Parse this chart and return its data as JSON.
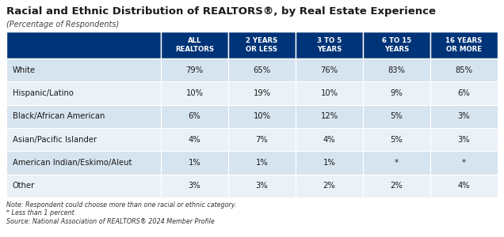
{
  "title": "Racial and Ethnic Distribution of REALTORS®, by Real Estate Experience",
  "subtitle": "(Percentage of Respondents)",
  "columns": [
    "ALL\nREALTORS",
    "2 YEARS\nOR LESS",
    "3 TO 5\nYEARS",
    "6 TO 15\nYEARS",
    "16 YEARS\nOR MORE"
  ],
  "rows": [
    {
      "label": "White",
      "values": [
        "79%",
        "65%",
        "76%",
        "83%",
        "85%"
      ]
    },
    {
      "label": "Hispanic/Latino",
      "values": [
        "10%",
        "19%",
        "10%",
        "9%",
        "6%"
      ]
    },
    {
      "label": "Black/African American",
      "values": [
        "6%",
        "10%",
        "12%",
        "5%",
        "3%"
      ]
    },
    {
      "label": "Asian/Pacific Islander",
      "values": [
        "4%",
        "7%",
        "4%",
        "5%",
        "3%"
      ]
    },
    {
      "label": "American Indian/Eskimo/Aleut",
      "values": [
        "1%",
        "1%",
        "1%",
        "*",
        "*"
      ]
    },
    {
      "label": "Other",
      "values": [
        "3%",
        "3%",
        "2%",
        "2%",
        "4%"
      ]
    }
  ],
  "note": "Note: Respondent could choose more than one racial or ethnic category.\n* Less than 1 percent\nSource: National Association of REALTORS® 2024 Member Profile",
  "header_bg": "#003478",
  "header_text": "#ffffff",
  "row_bg_even": "#d6e4f0",
  "row_bg_odd": "#eaf2f8",
  "cell_text": "#1a1a1a",
  "label_text": "#1a1a1a",
  "title_color": "#1a1a1a",
  "subtitle_color": "#444444",
  "note_color": "#333333"
}
